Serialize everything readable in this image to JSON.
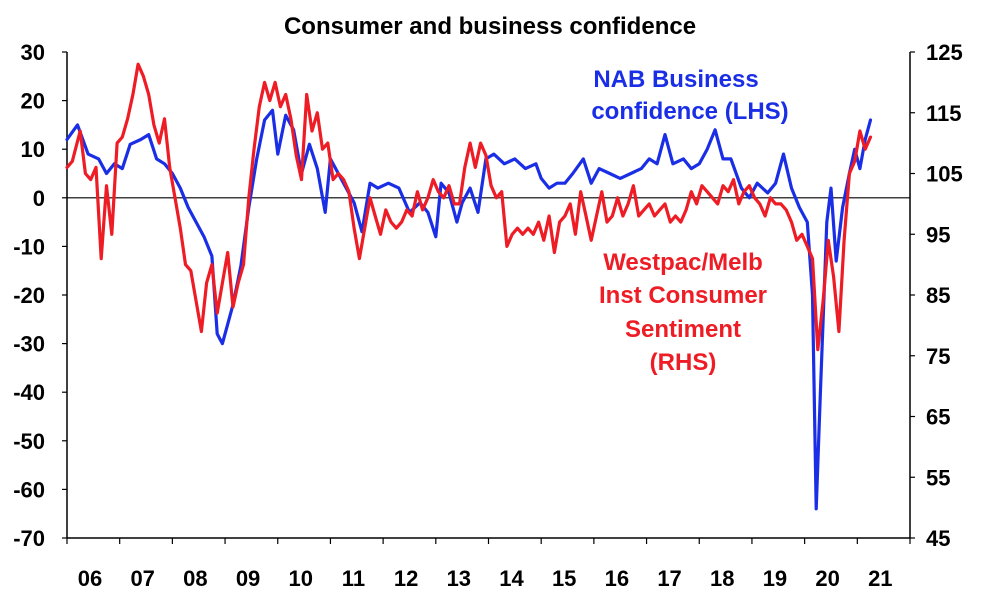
{
  "chart_data": {
    "type": "line",
    "title": "Consumer and business confidence",
    "x_tick_labels": [
      "06",
      "07",
      "08",
      "09",
      "10",
      "11",
      "12",
      "13",
      "14",
      "15",
      "16",
      "17",
      "18",
      "19",
      "20",
      "21"
    ],
    "y_left": {
      "min": -70,
      "max": 30,
      "ticks": [
        30,
        20,
        10,
        0,
        -10,
        -20,
        -30,
        -40,
        -50,
        -60,
        -70
      ]
    },
    "y_right": {
      "min": 45,
      "max": 125,
      "ticks": [
        125,
        115,
        105,
        95,
        85,
        75,
        65,
        55,
        45
      ]
    },
    "grid": false,
    "zero_line": true,
    "series": [
      {
        "name": "NAB Business confidence (LHS)",
        "axis": "left",
        "color": "#1a2ee6",
        "points": [
          [
            2006.0,
            12
          ],
          [
            2006.2,
            15
          ],
          [
            2006.4,
            9
          ],
          [
            2006.6,
            8
          ],
          [
            2006.75,
            5
          ],
          [
            2006.9,
            7
          ],
          [
            2007.05,
            6
          ],
          [
            2007.2,
            11
          ],
          [
            2007.4,
            12
          ],
          [
            2007.55,
            13
          ],
          [
            2007.7,
            8
          ],
          [
            2007.85,
            7
          ],
          [
            2008.0,
            5
          ],
          [
            2008.15,
            2
          ],
          [
            2008.3,
            -2
          ],
          [
            2008.45,
            -5
          ],
          [
            2008.6,
            -8
          ],
          [
            2008.75,
            -12
          ],
          [
            2008.85,
            -28
          ],
          [
            2008.95,
            -30
          ],
          [
            2009.05,
            -26
          ],
          [
            2009.15,
            -22
          ],
          [
            2009.3,
            -14
          ],
          [
            2009.45,
            -2
          ],
          [
            2009.6,
            8
          ],
          [
            2009.75,
            16
          ],
          [
            2009.9,
            18
          ],
          [
            2010.0,
            9
          ],
          [
            2010.15,
            17
          ],
          [
            2010.3,
            14
          ],
          [
            2010.45,
            5
          ],
          [
            2010.6,
            11
          ],
          [
            2010.75,
            6
          ],
          [
            2010.9,
            -3
          ],
          [
            2011.0,
            8
          ],
          [
            2011.15,
            5
          ],
          [
            2011.3,
            2
          ],
          [
            2011.45,
            -1
          ],
          [
            2011.6,
            -7
          ],
          [
            2011.75,
            3
          ],
          [
            2011.9,
            2
          ],
          [
            2012.1,
            3
          ],
          [
            2012.3,
            2
          ],
          [
            2012.5,
            -3
          ],
          [
            2012.7,
            -1
          ],
          [
            2012.85,
            -3
          ],
          [
            2013.0,
            -8
          ],
          [
            2013.1,
            3
          ],
          [
            2013.25,
            1
          ],
          [
            2013.4,
            -5
          ],
          [
            2013.5,
            -1
          ],
          [
            2013.65,
            2
          ],
          [
            2013.8,
            -3
          ],
          [
            2013.95,
            8
          ],
          [
            2014.1,
            9
          ],
          [
            2014.3,
            7
          ],
          [
            2014.5,
            8
          ],
          [
            2014.7,
            6
          ],
          [
            2014.9,
            7
          ],
          [
            2015.0,
            4
          ],
          [
            2015.15,
            2
          ],
          [
            2015.3,
            3
          ],
          [
            2015.45,
            3
          ],
          [
            2015.6,
            5
          ],
          [
            2015.8,
            8
          ],
          [
            2015.95,
            3
          ],
          [
            2016.1,
            6
          ],
          [
            2016.3,
            5
          ],
          [
            2016.5,
            4
          ],
          [
            2016.7,
            5
          ],
          [
            2016.9,
            6
          ],
          [
            2017.05,
            8
          ],
          [
            2017.2,
            7
          ],
          [
            2017.35,
            13
          ],
          [
            2017.5,
            7
          ],
          [
            2017.7,
            8
          ],
          [
            2017.85,
            6
          ],
          [
            2018.0,
            7
          ],
          [
            2018.15,
            10
          ],
          [
            2018.3,
            14
          ],
          [
            2018.45,
            8
          ],
          [
            2018.6,
            8
          ],
          [
            2018.8,
            2
          ],
          [
            2018.95,
            0
          ],
          [
            2019.1,
            3
          ],
          [
            2019.3,
            1
          ],
          [
            2019.45,
            3
          ],
          [
            2019.6,
            9
          ],
          [
            2019.75,
            2
          ],
          [
            2019.9,
            -2
          ],
          [
            2020.05,
            -5
          ],
          [
            2020.15,
            -20
          ],
          [
            2020.22,
            -64
          ],
          [
            2020.3,
            -40
          ],
          [
            2020.42,
            -5
          ],
          [
            2020.5,
            2
          ],
          [
            2020.6,
            -13
          ],
          [
            2020.72,
            -2
          ],
          [
            2020.85,
            5
          ],
          [
            2020.95,
            10
          ],
          [
            2021.05,
            6
          ],
          [
            2021.15,
            12
          ],
          [
            2021.25,
            16
          ]
        ]
      },
      {
        "name": "Westpac/Melb Inst Consumer Sentiment (RHS)",
        "axis": "right",
        "color": "#ee1c25",
        "points": [
          [
            2006.0,
            106
          ],
          [
            2006.1,
            107
          ],
          [
            2006.25,
            112
          ],
          [
            2006.35,
            105
          ],
          [
            2006.45,
            104
          ],
          [
            2006.55,
            106
          ],
          [
            2006.65,
            91
          ],
          [
            2006.75,
            103
          ],
          [
            2006.85,
            95
          ],
          [
            2006.95,
            110
          ],
          [
            2007.05,
            111
          ],
          [
            2007.15,
            114
          ],
          [
            2007.25,
            118
          ],
          [
            2007.35,
            123
          ],
          [
            2007.45,
            121
          ],
          [
            2007.55,
            118
          ],
          [
            2007.65,
            113
          ],
          [
            2007.75,
            110
          ],
          [
            2007.85,
            114
          ],
          [
            2007.95,
            106
          ],
          [
            2008.05,
            101
          ],
          [
            2008.15,
            96
          ],
          [
            2008.25,
            90
          ],
          [
            2008.35,
            89
          ],
          [
            2008.45,
            84
          ],
          [
            2008.55,
            79
          ],
          [
            2008.65,
            87
          ],
          [
            2008.75,
            90
          ],
          [
            2008.85,
            82
          ],
          [
            2008.95,
            87
          ],
          [
            2009.05,
            92
          ],
          [
            2009.15,
            83
          ],
          [
            2009.25,
            87
          ],
          [
            2009.35,
            90
          ],
          [
            2009.45,
            101
          ],
          [
            2009.55,
            109
          ],
          [
            2009.65,
            116
          ],
          [
            2009.75,
            120
          ],
          [
            2009.85,
            117
          ],
          [
            2009.95,
            120
          ],
          [
            2010.05,
            116
          ],
          [
            2010.15,
            118
          ],
          [
            2010.25,
            114
          ],
          [
            2010.35,
            108
          ],
          [
            2010.45,
            104
          ],
          [
            2010.55,
            118
          ],
          [
            2010.65,
            112
          ],
          [
            2010.75,
            115
          ],
          [
            2010.85,
            109
          ],
          [
            2010.95,
            110
          ],
          [
            2011.05,
            104
          ],
          [
            2011.15,
            105
          ],
          [
            2011.25,
            104
          ],
          [
            2011.35,
            102
          ],
          [
            2011.45,
            96
          ],
          [
            2011.55,
            91
          ],
          [
            2011.65,
            96
          ],
          [
            2011.75,
            101
          ],
          [
            2011.85,
            98
          ],
          [
            2011.95,
            95
          ],
          [
            2012.05,
            99
          ],
          [
            2012.15,
            97
          ],
          [
            2012.25,
            96
          ],
          [
            2012.35,
            97
          ],
          [
            2012.45,
            99
          ],
          [
            2012.55,
            98
          ],
          [
            2012.65,
            102
          ],
          [
            2012.75,
            99
          ],
          [
            2012.85,
            101
          ],
          [
            2012.95,
            104
          ],
          [
            2013.05,
            102
          ],
          [
            2013.15,
            101
          ],
          [
            2013.25,
            103
          ],
          [
            2013.35,
            100
          ],
          [
            2013.45,
            100
          ],
          [
            2013.55,
            106
          ],
          [
            2013.65,
            110
          ],
          [
            2013.75,
            106
          ],
          [
            2013.85,
            110
          ],
          [
            2013.95,
            108
          ],
          [
            2014.05,
            103
          ],
          [
            2014.15,
            101
          ],
          [
            2014.25,
            102
          ],
          [
            2014.35,
            93
          ],
          [
            2014.45,
            95
          ],
          [
            2014.55,
            96
          ],
          [
            2014.65,
            95
          ],
          [
            2014.75,
            96
          ],
          [
            2014.85,
            95
          ],
          [
            2014.95,
            97
          ],
          [
            2015.05,
            94
          ],
          [
            2015.15,
            98
          ],
          [
            2015.25,
            92
          ],
          [
            2015.35,
            97
          ],
          [
            2015.45,
            98
          ],
          [
            2015.55,
            100
          ],
          [
            2015.65,
            95
          ],
          [
            2015.75,
            102
          ],
          [
            2015.85,
            98
          ],
          [
            2015.95,
            94
          ],
          [
            2016.05,
            98
          ],
          [
            2016.15,
            102
          ],
          [
            2016.25,
            97
          ],
          [
            2016.35,
            98
          ],
          [
            2016.45,
            101
          ],
          [
            2016.55,
            98
          ],
          [
            2016.65,
            100
          ],
          [
            2016.75,
            103
          ],
          [
            2016.85,
            98
          ],
          [
            2016.95,
            99
          ],
          [
            2017.05,
            100
          ],
          [
            2017.15,
            98
          ],
          [
            2017.25,
            99
          ],
          [
            2017.35,
            100
          ],
          [
            2017.45,
            97
          ],
          [
            2017.55,
            98
          ],
          [
            2017.65,
            97
          ],
          [
            2017.75,
            99
          ],
          [
            2017.85,
            102
          ],
          [
            2017.95,
            100
          ],
          [
            2018.05,
            103
          ],
          [
            2018.15,
            102
          ],
          [
            2018.25,
            101
          ],
          [
            2018.35,
            100
          ],
          [
            2018.45,
            103
          ],
          [
            2018.55,
            102
          ],
          [
            2018.65,
            104
          ],
          [
            2018.75,
            100
          ],
          [
            2018.85,
            102
          ],
          [
            2018.95,
            103
          ],
          [
            2019.05,
            101
          ],
          [
            2019.15,
            100
          ],
          [
            2019.25,
            98
          ],
          [
            2019.35,
            101
          ],
          [
            2019.45,
            100
          ],
          [
            2019.55,
            100
          ],
          [
            2019.65,
            99
          ],
          [
            2019.75,
            97
          ],
          [
            2019.85,
            94
          ],
          [
            2019.95,
            95
          ],
          [
            2020.05,
            93
          ],
          [
            2020.15,
            91
          ],
          [
            2020.25,
            76
          ],
          [
            2020.35,
            84
          ],
          [
            2020.45,
            94
          ],
          [
            2020.55,
            88
          ],
          [
            2020.65,
            79
          ],
          [
            2020.75,
            94
          ],
          [
            2020.85,
            105
          ],
          [
            2020.95,
            107
          ],
          [
            2021.05,
            112
          ],
          [
            2021.15,
            109
          ],
          [
            2021.25,
            111
          ]
        ]
      }
    ]
  },
  "annotations": {
    "nab_line1": "NAB Business",
    "nab_line2": "confidence (LHS)",
    "wbc_line1": "Westpac/Melb",
    "wbc_line2": "Inst Consumer",
    "wbc_line3": "Sentiment",
    "wbc_line4": "(RHS)"
  }
}
